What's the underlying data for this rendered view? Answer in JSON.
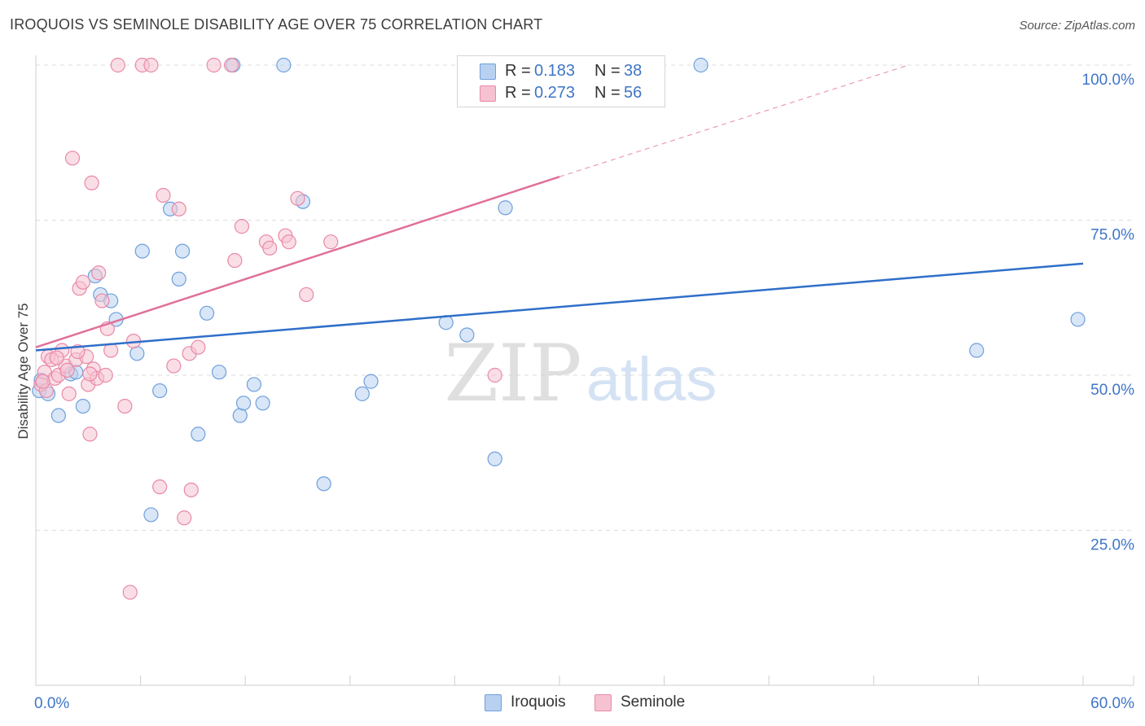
{
  "title": "IROQUOIS VS SEMINOLE DISABILITY AGE OVER 75 CORRELATION CHART",
  "source": "Source: ZipAtlas.com",
  "watermark": {
    "zip": "ZIP",
    "atlas": "atlas"
  },
  "colors": {
    "iroquois_fill": "#b8d1f0",
    "iroquois_stroke": "#6f9fdc",
    "iroquois_line": "#2f6fc9",
    "seminole_fill": "#f6c2d2",
    "seminole_stroke": "#e889a8",
    "seminole_line": "#e0709a",
    "axis_label": "#3f75c7",
    "grid": "#dddddd"
  },
  "legend": {
    "rows": [
      {
        "r_label": "R =",
        "r_value": "0.183",
        "n_label": "N =",
        "n_value": "38"
      },
      {
        "r_label": "R =",
        "r_value": "0.273",
        "n_label": "N =",
        "n_value": "56"
      }
    ]
  },
  "bottom_legend": {
    "items": [
      "Iroquois",
      "Seminole"
    ]
  },
  "chart_data": {
    "type": "scatter",
    "title": "IROQUOIS VS SEMINOLE DISABILITY AGE OVER 75 CORRELATION CHART",
    "xlabel": "",
    "ylabel": "Disability Age Over 75",
    "xlim": [
      0,
      60
    ],
    "ylim": [
      0,
      100
    ],
    "x_tick_labels": [
      "0.0%",
      "60.0%"
    ],
    "y_ticks": [
      25,
      50,
      75,
      100
    ],
    "y_tick_labels": [
      "25.0%",
      "50.0%",
      "75.0%",
      "100.0%"
    ],
    "grid": true,
    "series": [
      {
        "name": "Iroquois",
        "R": 0.183,
        "N": 38,
        "trend": {
          "x": [
            0,
            60
          ],
          "y": [
            54,
            68
          ]
        },
        "points": [
          [
            0.2,
            47.5
          ],
          [
            0.7,
            47.0
          ],
          [
            1.3,
            43.5
          ],
          [
            2.0,
            50.2
          ],
          [
            2.7,
            45.0
          ],
          [
            3.4,
            66.0
          ],
          [
            3.7,
            63.0
          ],
          [
            4.3,
            62.0
          ],
          [
            4.6,
            59.0
          ],
          [
            5.8,
            53.5
          ],
          [
            6.1,
            70.0
          ],
          [
            7.1,
            47.5
          ],
          [
            7.7,
            76.8
          ],
          [
            8.2,
            65.5
          ],
          [
            8.4,
            70.0
          ],
          [
            9.3,
            40.5
          ],
          [
            9.8,
            60.0
          ],
          [
            10.5,
            50.5
          ],
          [
            11.3,
            100.0
          ],
          [
            11.7,
            43.5
          ],
          [
            11.9,
            45.5
          ],
          [
            12.5,
            48.5
          ],
          [
            13.0,
            45.5
          ],
          [
            14.2,
            100.0
          ],
          [
            15.3,
            78.0
          ],
          [
            16.5,
            32.5
          ],
          [
            18.7,
            47.0
          ],
          [
            19.2,
            49.0
          ],
          [
            23.5,
            58.5
          ],
          [
            24.7,
            56.5
          ],
          [
            26.3,
            36.5
          ],
          [
            26.9,
            77.0
          ],
          [
            38.1,
            100.0
          ],
          [
            53.9,
            54.0
          ],
          [
            59.7,
            59.0
          ],
          [
            6.6,
            27.5
          ],
          [
            0.3,
            49.2
          ],
          [
            2.3,
            50.5
          ]
        ]
      },
      {
        "name": "Seminole",
        "R": 0.273,
        "N": 56,
        "trend": {
          "x": [
            0,
            30
          ],
          "y": [
            54.5,
            82
          ]
        },
        "trend_extension": {
          "x": [
            30,
            50
          ],
          "y": [
            82,
            100
          ]
        },
        "points": [
          [
            0.3,
            48.5
          ],
          [
            0.5,
            50.5
          ],
          [
            0.7,
            53.0
          ],
          [
            0.9,
            52.5
          ],
          [
            1.1,
            49.5
          ],
          [
            1.3,
            50.0
          ],
          [
            1.5,
            54.0
          ],
          [
            1.7,
            51.5
          ],
          [
            1.9,
            47.0
          ],
          [
            2.1,
            85.0
          ],
          [
            2.3,
            52.5
          ],
          [
            2.5,
            64.0
          ],
          [
            2.7,
            65.0
          ],
          [
            2.9,
            53.0
          ],
          [
            3.0,
            48.5
          ],
          [
            3.1,
            40.5
          ],
          [
            3.2,
            81.0
          ],
          [
            3.3,
            51.0
          ],
          [
            3.5,
            49.5
          ],
          [
            3.6,
            66.5
          ],
          [
            3.8,
            62.0
          ],
          [
            4.0,
            50.0
          ],
          [
            4.1,
            57.5
          ],
          [
            4.3,
            54.0
          ],
          [
            4.7,
            100.0
          ],
          [
            5.1,
            45.0
          ],
          [
            5.6,
            55.5
          ],
          [
            6.1,
            100.0
          ],
          [
            6.6,
            100.0
          ],
          [
            7.1,
            32.0
          ],
          [
            7.3,
            79.0
          ],
          [
            7.9,
            51.5
          ],
          [
            8.2,
            76.8
          ],
          [
            8.5,
            27.0
          ],
          [
            8.8,
            53.5
          ],
          [
            8.9,
            31.5
          ],
          [
            9.3,
            54.5
          ],
          [
            10.2,
            100.0
          ],
          [
            11.2,
            100.0
          ],
          [
            11.4,
            68.5
          ],
          [
            11.8,
            74.0
          ],
          [
            13.2,
            71.5
          ],
          [
            13.4,
            70.5
          ],
          [
            14.3,
            72.5
          ],
          [
            14.5,
            71.5
          ],
          [
            15.0,
            78.5
          ],
          [
            15.5,
            63.0
          ],
          [
            16.9,
            71.5
          ],
          [
            26.3,
            50.0
          ],
          [
            5.4,
            15.0
          ],
          [
            0.6,
            47.5
          ],
          [
            1.2,
            52.8
          ],
          [
            2.4,
            53.8
          ],
          [
            3.1,
            50.2
          ],
          [
            1.8,
            50.8
          ],
          [
            0.4,
            49.0
          ]
        ]
      }
    ]
  }
}
